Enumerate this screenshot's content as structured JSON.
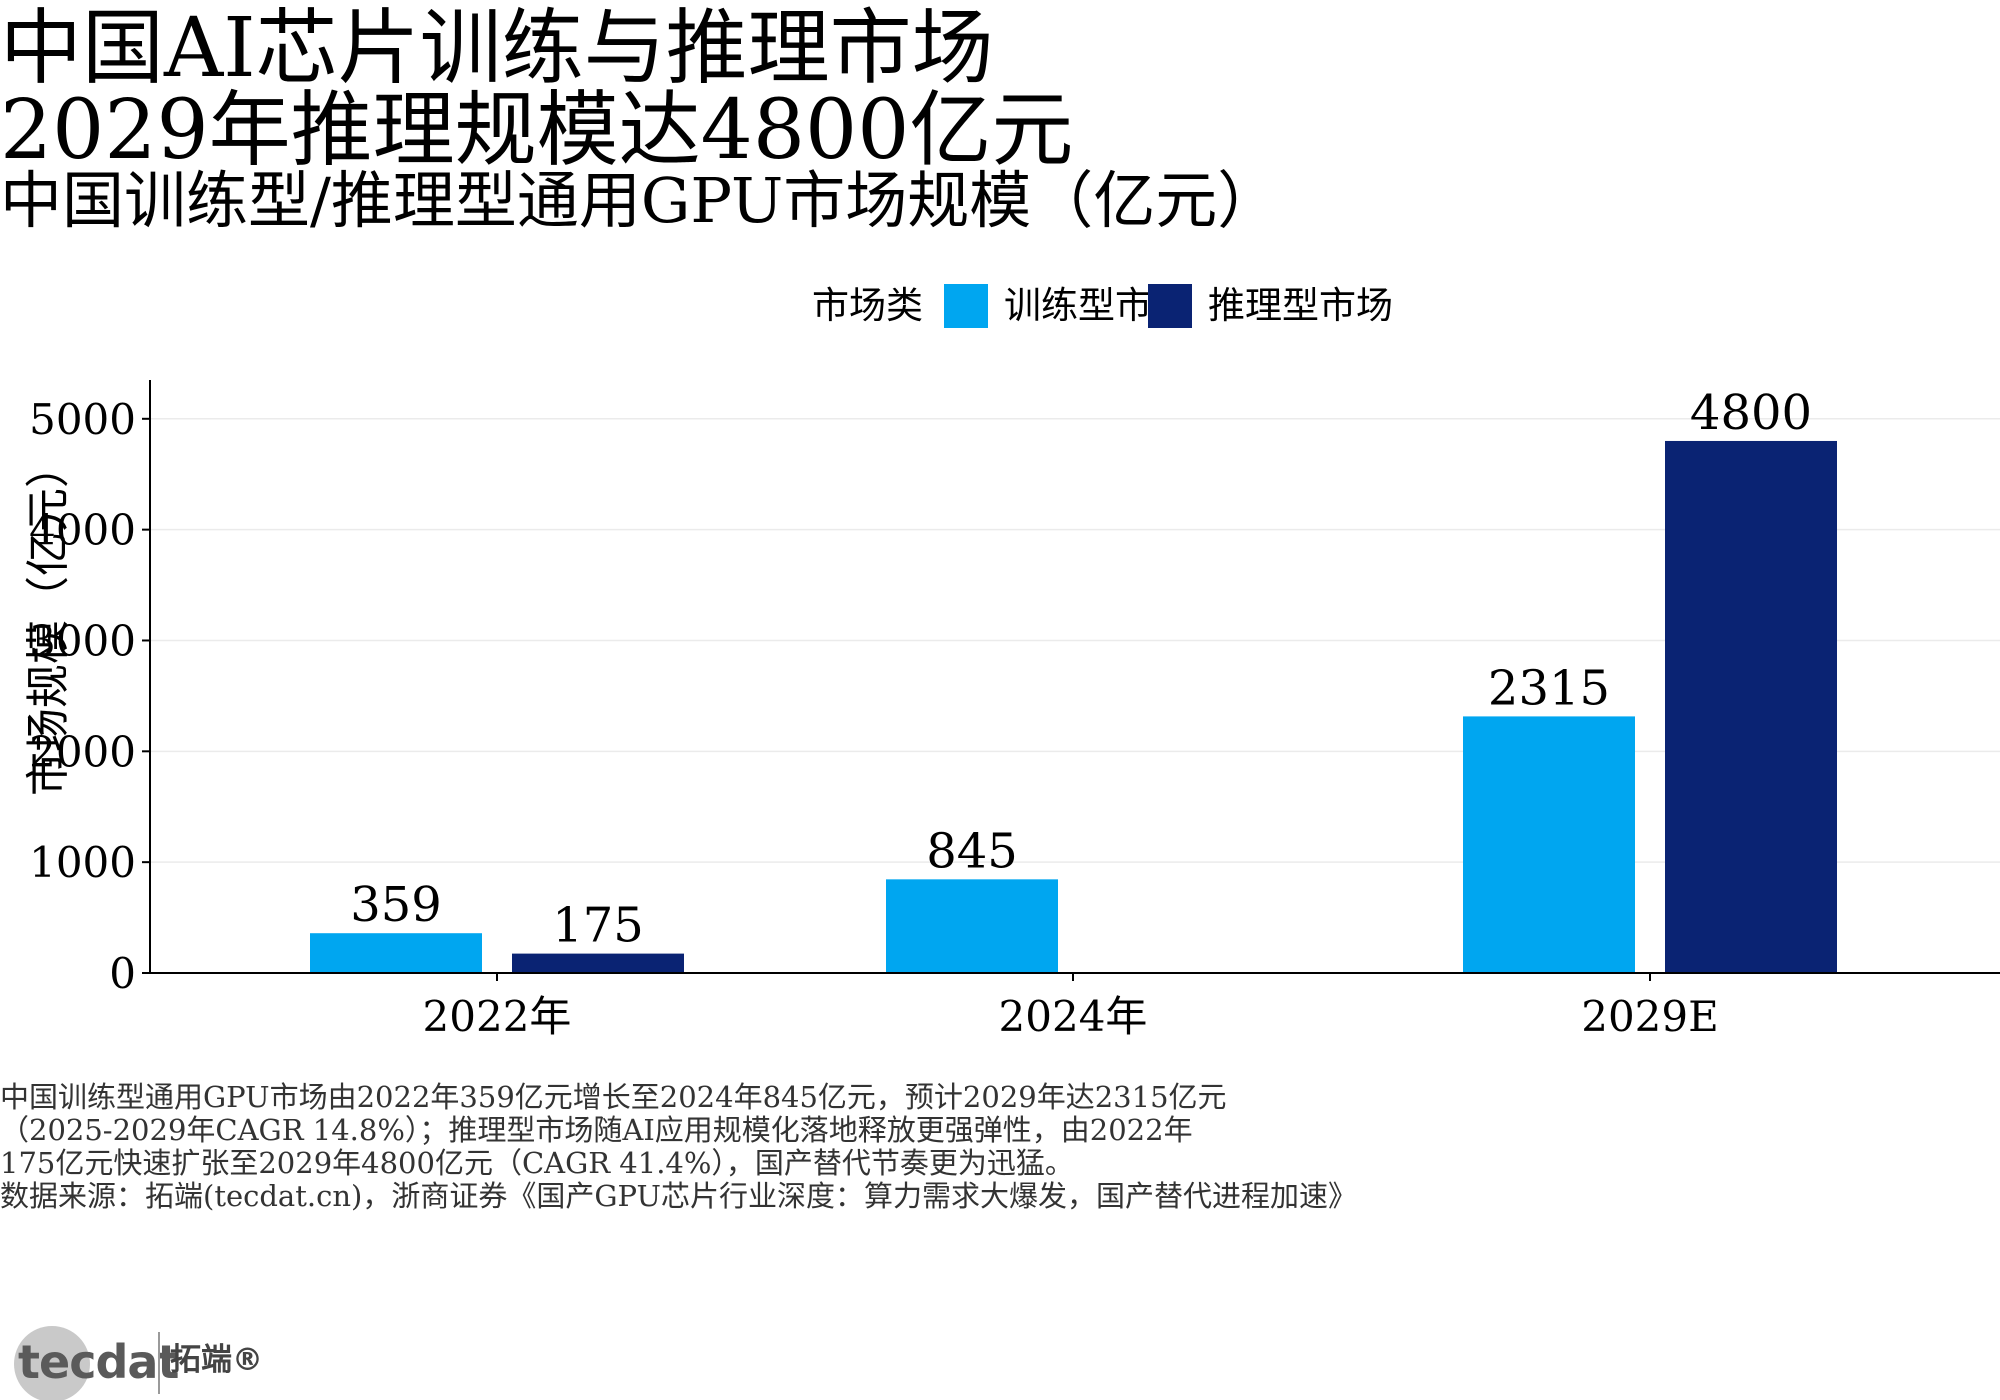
{
  "page": {
    "title_line1": "中国AI芯片训练与推理市场",
    "title_line2": "2029年推理规模达4800亿元",
    "subtitle": "中国训练型/推理型通用GPU市场规模（亿元）"
  },
  "legend": {
    "title": "市场类",
    "items": [
      {
        "label": "训练型市场",
        "color": "#00A6F0"
      },
      {
        "label": "推理型市场",
        "color": "#0A2373"
      }
    ]
  },
  "chart_data": {
    "type": "bar",
    "categories": [
      "2022年",
      "2024年",
      "2029E"
    ],
    "series": [
      {
        "name": "训练型市场",
        "values": [
          359,
          845,
          2315
        ],
        "color": "#00A6F0"
      },
      {
        "name": "推理型市场",
        "values": [
          175,
          null,
          4800
        ],
        "color": "#0A2373"
      }
    ],
    "ylabel": "市场规模（亿元）",
    "xlabel": "",
    "ylim": [
      0,
      5350
    ],
    "yticks": [
      0,
      1000,
      2000,
      3000,
      4000,
      5000
    ],
    "grid": "horizontal",
    "legend_position": "top"
  },
  "description": {
    "lines": [
      "中国训练型通用GPU市场由2022年359亿元增长至2024年845亿元，预计2029年达2315亿元",
      "（2025-2029年CAGR 14.8%）；推理型市场随AI应用规模化落地释放更强弹性，由2022年",
      "175亿元快速扩张至2029年4800亿元（CAGR 41.4%），国产替代节奏更为迅猛。",
      "数据来源：拓端(tecdat.cn)，浙商证券《国产GPU芯片行业深度：算力需求大爆发，国产替代进程加速》"
    ]
  },
  "logo": {
    "wordmark": "tecdat",
    "chinese": "拓端®"
  }
}
